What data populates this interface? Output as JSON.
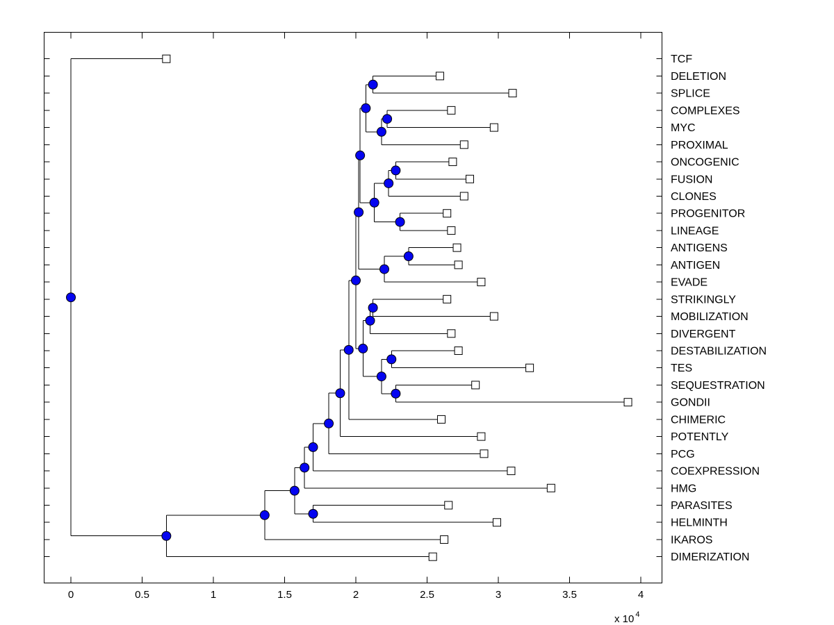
{
  "figure": {
    "background": "#ffffff",
    "line_color": "#000000"
  },
  "chart_data": {
    "type": "dendrogram",
    "orientation": "left-to-right",
    "title": "",
    "x_axis": {
      "tick_labels": [
        "0",
        "0.5",
        "1",
        "1.5",
        "2",
        "2.5",
        "3",
        "3.5",
        "4"
      ],
      "tick_values": [
        0,
        0.5,
        1,
        1.5,
        2,
        2.5,
        3,
        3.5,
        4
      ],
      "scale_label": {
        "prefix": "x 10",
        "exponent": "4"
      },
      "unit_multiplier": 10000,
      "xlim_units": [
        -0.19,
        4.15
      ],
      "grid": false
    },
    "markers": {
      "internal_node": {
        "shape": "circle",
        "fill": "#0505F0",
        "edge": "#000000"
      },
      "leaf_node": {
        "shape": "square",
        "fill": "#FFFFFF",
        "edge": "#000000"
      }
    },
    "leaves": [
      {
        "name": "TCF",
        "distance": 0.67
      },
      {
        "name": "DELETION",
        "distance": 2.59
      },
      {
        "name": "SPLICE",
        "distance": 3.1
      },
      {
        "name": "COMPLEXES",
        "distance": 2.67
      },
      {
        "name": "MYC",
        "distance": 2.97
      },
      {
        "name": "PROXIMAL",
        "distance": 2.76
      },
      {
        "name": "ONCOGENIC",
        "distance": 2.68
      },
      {
        "name": "FUSION",
        "distance": 2.8
      },
      {
        "name": "CLONES",
        "distance": 2.76
      },
      {
        "name": "PROGENITOR",
        "distance": 2.64
      },
      {
        "name": "LINEAGE",
        "distance": 2.67
      },
      {
        "name": "ANTIGENS",
        "distance": 2.71
      },
      {
        "name": "ANTIGEN",
        "distance": 2.72
      },
      {
        "name": "EVADE",
        "distance": 2.88
      },
      {
        "name": "STRIKINGLY",
        "distance": 2.64
      },
      {
        "name": "MOBILIZATION",
        "distance": 2.97
      },
      {
        "name": "DIVERGENT",
        "distance": 2.67
      },
      {
        "name": "DESTABILIZATION",
        "distance": 2.72
      },
      {
        "name": "TES",
        "distance": 3.22
      },
      {
        "name": "SEQUESTRATION",
        "distance": 2.84
      },
      {
        "name": "GONDII",
        "distance": 3.91
      },
      {
        "name": "CHIMERIC",
        "distance": 2.6
      },
      {
        "name": "POTENTLY",
        "distance": 2.88
      },
      {
        "name": "PCG",
        "distance": 2.9
      },
      {
        "name": "COEXPRESSION",
        "distance": 3.09
      },
      {
        "name": "HMG",
        "distance": 3.37
      },
      {
        "name": "PARASITES",
        "distance": 2.65
      },
      {
        "name": "HELMINTH",
        "distance": 2.99
      },
      {
        "name": "IKAROS",
        "distance": 2.62
      },
      {
        "name": "DIMERIZATION",
        "distance": 2.54
      }
    ],
    "tree": {
      "d": 0.0,
      "c": [
        "TCF",
        {
          "d": 0.67,
          "c": [
            {
              "d": 1.36,
              "c": [
                {
                  "d": 1.57,
                  "c": [
                    {
                      "d": 1.64,
                      "c": [
                        {
                          "d": 1.7,
                          "c": [
                            {
                              "d": 1.81,
                              "c": [
                                {
                                  "d": 1.89,
                                  "c": [
                                    {
                                      "d": 1.95,
                                      "c": [
                                        {
                                          "d": 2.0,
                                          "c": [
                                            {
                                              "d": 2.02,
                                              "c": [
                                                {
                                                  "d": 2.03,
                                                  "c": [
                                                    {
                                                      "d": 2.07,
                                                      "c": [
                                                        {
                                                          "d": 2.12,
                                                          "c": [
                                                            "DELETION",
                                                            "SPLICE"
                                                          ]
                                                        },
                                                        {
                                                          "d": 2.18,
                                                          "c": [
                                                            {
                                                              "d": 2.22,
                                                              "c": [
                                                                "COMPLEXES",
                                                                "MYC"
                                                              ]
                                                            },
                                                            "PROXIMAL"
                                                          ]
                                                        }
                                                      ]
                                                    },
                                                    {
                                                      "d": 2.13,
                                                      "c": [
                                                        {
                                                          "d": 2.23,
                                                          "c": [
                                                            {
                                                              "d": 2.28,
                                                              "c": [
                                                                "ONCOGENIC",
                                                                "FUSION"
                                                              ]
                                                            },
                                                            "CLONES"
                                                          ]
                                                        },
                                                        {
                                                          "d": 2.31,
                                                          "c": [
                                                            "PROGENITOR",
                                                            "LINEAGE"
                                                          ]
                                                        }
                                                      ]
                                                    }
                                                  ]
                                                },
                                                {
                                                  "d": 2.2,
                                                  "c": [
                                                    {
                                                      "d": 2.37,
                                                      "c": [
                                                        "ANTIGENS",
                                                        "ANTIGEN"
                                                      ]
                                                    },
                                                    "EVADE"
                                                  ]
                                                }
                                              ]
                                            },
                                            {
                                              "d": 2.05,
                                              "c": [
                                                {
                                                  "d": 2.1,
                                                  "c": [
                                                    {
                                                      "d": 2.12,
                                                      "c": [
                                                        "STRIKINGLY",
                                                        "MOBILIZATION"
                                                      ]
                                                    },
                                                    "DIVERGENT"
                                                  ]
                                                },
                                                {
                                                  "d": 2.18,
                                                  "c": [
                                                    {
                                                      "d": 2.25,
                                                      "c": [
                                                        "DESTABILIZATION",
                                                        "TES"
                                                      ]
                                                    },
                                                    {
                                                      "d": 2.28,
                                                      "c": [
                                                        "SEQUESTRATION",
                                                        "GONDII"
                                                      ]
                                                    }
                                                  ]
                                                }
                                              ]
                                            }
                                          ]
                                        },
                                        "CHIMERIC"
                                      ]
                                    },
                                    "POTENTLY"
                                  ]
                                },
                                "PCG"
                              ]
                            },
                            "COEXPRESSION"
                          ]
                        },
                        "HMG"
                      ]
                    },
                    {
                      "d": 1.7,
                      "c": [
                        "PARASITES",
                        "HELMINTH"
                      ]
                    }
                  ]
                },
                "IKAROS"
              ]
            },
            "DIMERIZATION"
          ]
        }
      ]
    }
  }
}
